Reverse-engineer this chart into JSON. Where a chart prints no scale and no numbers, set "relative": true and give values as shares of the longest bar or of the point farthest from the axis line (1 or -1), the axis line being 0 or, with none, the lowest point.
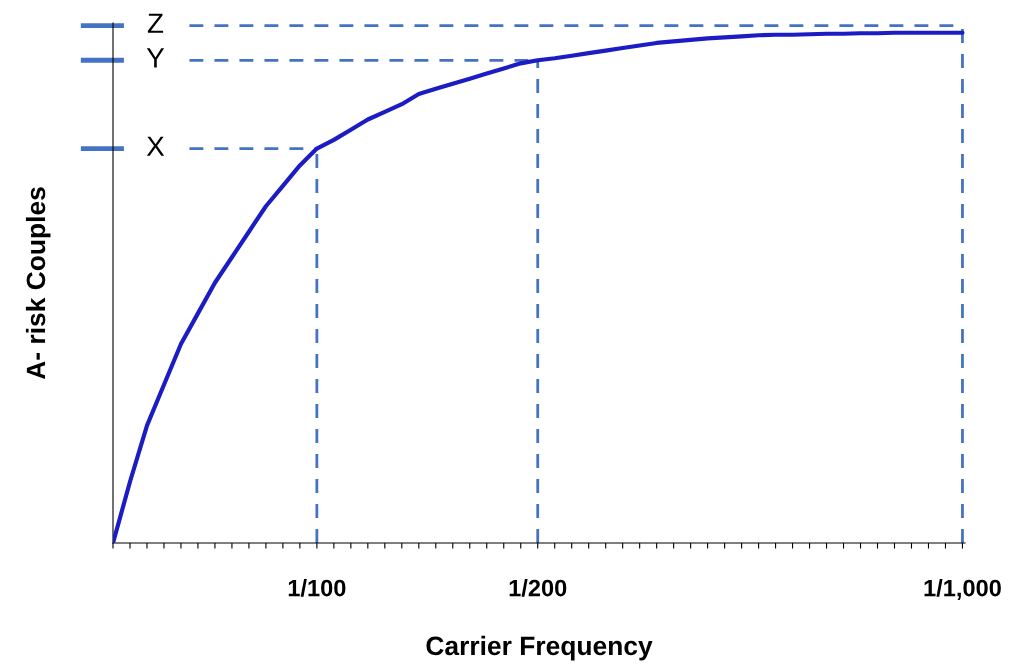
{
  "chart_data": {
    "type": "line",
    "relative": true,
    "xlabel": "Carrier Frequency",
    "ylabel": "A- risk Couples",
    "categories": [
      null,
      null,
      null,
      null,
      null,
      null,
      null,
      null,
      null,
      null,
      null,
      null,
      "1/100",
      null,
      null,
      null,
      null,
      null,
      null,
      null,
      null,
      null,
      null,
      null,
      null,
      "1/200",
      null,
      null,
      null,
      null,
      null,
      null,
      null,
      null,
      null,
      null,
      null,
      null,
      null,
      null,
      null,
      null,
      null,
      null,
      null,
      null,
      null,
      null,
      null,
      null,
      "1/1,000"
    ],
    "series": [
      {
        "color": "#1c1cc4",
        "values": [
          0,
          0.12,
          0.23,
          0.31,
          0.39,
          0.45,
          0.51,
          0.56,
          0.61,
          0.66,
          0.7,
          0.74,
          0.773,
          0.79,
          0.81,
          0.83,
          0.845,
          0.86,
          0.88,
          0.89,
          0.9,
          0.91,
          0.92,
          0.93,
          0.94,
          0.946,
          0.95,
          0.955,
          0.96,
          0.965,
          0.97,
          0.975,
          0.98,
          0.983,
          0.986,
          0.989,
          0.991,
          0.993,
          0.995,
          0.996,
          0.996,
          0.997,
          0.998,
          0.998,
          0.999,
          0.999,
          1,
          1,
          1,
          1,
          1
        ]
      }
    ],
    "ref_lines": [
      {
        "axis": "y",
        "value": 0.773,
        "label": "X",
        "color": "#4472c4",
        "line_style": "dashed"
      },
      {
        "axis": "y",
        "value": 0.946,
        "label": "Y",
        "color": "#4472c4",
        "line_style": "dashed"
      },
      {
        "axis": "y",
        "value": 1.014,
        "label": "Z",
        "color": "#4472c4",
        "line_style": "dashed"
      },
      {
        "axis": "x",
        "value": "1/100",
        "color": "#4472c4",
        "line_style": "dashed"
      },
      {
        "axis": "x",
        "value": "1/200",
        "color": "#4472c4",
        "line_style": "dashed"
      },
      {
        "axis": "x",
        "value": "1/1,000",
        "color": "#4472c4",
        "line_style": "dashed"
      }
    ],
    "grid": false,
    "legend": false
  }
}
